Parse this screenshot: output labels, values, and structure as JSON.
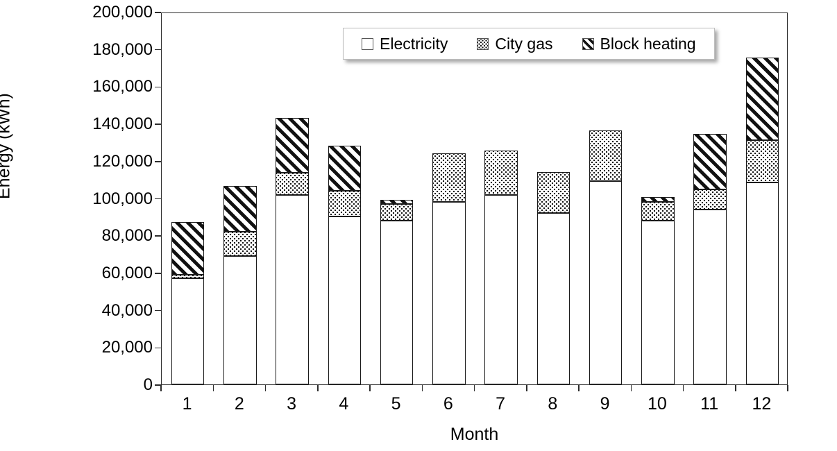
{
  "chart_data": {
    "type": "bar",
    "stacked": true,
    "title": "",
    "xlabel": "Month",
    "ylabel": "Energy (kWh)",
    "categories": [
      "1",
      "2",
      "3",
      "4",
      "5",
      "6",
      "7",
      "8",
      "9",
      "10",
      "11",
      "12"
    ],
    "series": [
      {
        "name": "Electricity",
        "pattern": "plain",
        "values": [
          57000,
          69000,
          101500,
          90000,
          88000,
          98000,
          101500,
          92000,
          109000,
          88000,
          94000,
          108500
        ]
      },
      {
        "name": "City gas",
        "pattern": "dots",
        "values": [
          2000,
          13000,
          12000,
          14000,
          9000,
          26000,
          24000,
          22000,
          27500,
          10000,
          10500,
          22500
        ]
      },
      {
        "name": "Block heating",
        "pattern": "diagonal",
        "values": [
          28000,
          24500,
          29500,
          24000,
          2000,
          0,
          0,
          0,
          0,
          2500,
          30000,
          44500
        ]
      }
    ],
    "ylim": [
      0,
      200000
    ],
    "ytick_step": 20000,
    "grid": false,
    "legend_position": "top-inside"
  }
}
